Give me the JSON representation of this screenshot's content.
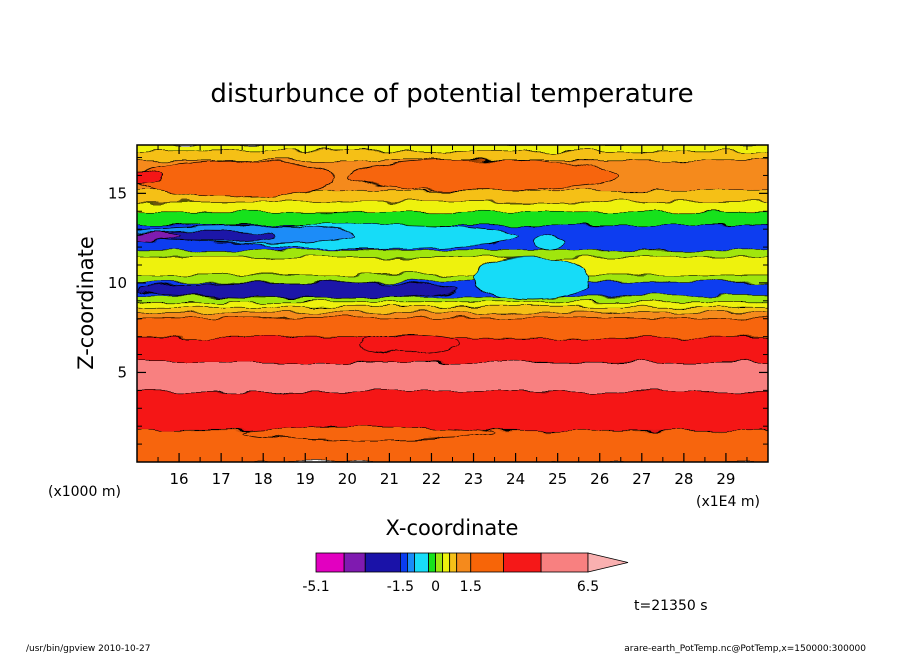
{
  "chart_data": {
    "type": "heatmap",
    "title": "disturbunce of potential temperature",
    "xlabel": "X-coordinate",
    "ylabel": "Z-coordinate",
    "x_unit_label": "(x1E4 m)",
    "y_unit_label": "(x1000 m)",
    "xlim": [
      15.0,
      30.0
    ],
    "ylim": [
      0.0,
      17.7
    ],
    "x_ticks": [
      "16",
      "17",
      "18",
      "19",
      "20",
      "21",
      "22",
      "23",
      "24",
      "25",
      "26",
      "27",
      "28",
      "29"
    ],
    "x_tick_values": [
      16,
      17,
      18,
      19,
      20,
      21,
      22,
      23,
      24,
      25,
      26,
      27,
      28,
      29
    ],
    "y_ticks": [
      "5",
      "10",
      "15"
    ],
    "y_tick_values": [
      5,
      10,
      15
    ],
    "time_label": "t=21350 s",
    "colorbar": {
      "colors": [
        "#e200c0",
        "#7f1ab0",
        "#1a12a8",
        "#0a3cf0",
        "#1a8cf8",
        "#18dcf8",
        "#16e21c",
        "#a0e610",
        "#eef20e",
        "#f5c018",
        "#f58a1c",
        "#f76508",
        "#f51818",
        "#f88080",
        "#f9b0b0"
      ],
      "levels_left": [
        -5.1,
        -3.9,
        -3.0,
        -1.5,
        -1.2,
        -0.9,
        -0.3,
        0.0,
        0.3,
        0.6,
        0.9,
        1.5,
        2.9,
        4.5,
        6.5
      ],
      "labels": [
        {
          "text": "-5.1",
          "value": -5.1
        },
        {
          "text": "-1.5",
          "value": -1.5
        },
        {
          "text": "0",
          "value": 0
        },
        {
          "text": "1.5",
          "value": 1.5
        },
        {
          "text": "6.5",
          "value": 6.5
        }
      ]
    },
    "bands": [
      {
        "z": 0.0,
        "color": "#f76508"
      },
      {
        "z": 1.8,
        "color": "#f51818"
      },
      {
        "z": 4.0,
        "color": "#f88080"
      },
      {
        "z": 5.6,
        "color": "#f51818"
      },
      {
        "z": 7.0,
        "color": "#f76508"
      },
      {
        "z": 8.1,
        "color": "#f58a1c"
      },
      {
        "z": 8.4,
        "color": "#f5c018"
      },
      {
        "z": 8.7,
        "color": "#eef20e"
      },
      {
        "z": 9.0,
        "color": "#a0e610"
      },
      {
        "z": 9.3,
        "color": "#0a3cf0"
      },
      {
        "z": 10.1,
        "color": "#a0e610"
      },
      {
        "z": 10.5,
        "color": "#eef20e"
      },
      {
        "z": 11.5,
        "color": "#a0e610"
      },
      {
        "z": 11.9,
        "color": "#0a3cf0"
      },
      {
        "z": 13.3,
        "color": "#16e21c"
      },
      {
        "z": 14.0,
        "color": "#eef20e"
      },
      {
        "z": 14.6,
        "color": "#f5c018"
      },
      {
        "z": 15.2,
        "color": "#f58a1c"
      },
      {
        "z": 16.9,
        "color": "#f5c018"
      },
      {
        "z": 17.4,
        "color": "#eef20e"
      }
    ],
    "blobs": [
      {
        "x": 24.4,
        "z": 10.3,
        "rx": 1.4,
        "rz": 1.2,
        "color": "#18dcf8"
      },
      {
        "x": 24.8,
        "z": 12.2,
        "rx": 0.35,
        "rz": 0.35,
        "color": "#18dcf8"
      },
      {
        "x": 20.5,
        "z": 12.6,
        "rx": 3.6,
        "rz": 0.7,
        "color": "#18dcf8"
      },
      {
        "x": 17.5,
        "z": 12.7,
        "rx": 2.7,
        "rz": 0.5,
        "color": "#1a8cf8"
      },
      {
        "x": 16.6,
        "z": 12.6,
        "rx": 1.7,
        "rz": 0.32,
        "color": "#1a12a8"
      },
      {
        "x": 15.4,
        "z": 12.6,
        "rx": 0.6,
        "rz": 0.25,
        "color": "#7f1ab0"
      },
      {
        "x": 17.3,
        "z": 15.8,
        "rx": 2.4,
        "rz": 1.0,
        "color": "#f76508"
      },
      {
        "x": 23.2,
        "z": 16.0,
        "rx": 3.2,
        "rz": 0.85,
        "color": "#f76508"
      },
      {
        "x": 15.1,
        "z": 15.9,
        "rx": 0.5,
        "rz": 0.35,
        "color": "#f51818"
      },
      {
        "x": 18.8,
        "z": 9.6,
        "rx": 3.8,
        "rz": 0.45,
        "color": "#1a12a8"
      },
      {
        "x": 21.5,
        "z": 6.6,
        "rx": 1.2,
        "rz": 0.5,
        "color": "#f51818"
      },
      {
        "x": 20.5,
        "z": 1.6,
        "rx": 3.0,
        "rz": 0.35,
        "color": "#f76508"
      }
    ]
  },
  "footer": {
    "left": "/usr/bin/gpview   2010-10-27",
    "right": "arare-earth_PotTemp.nc@PotTemp,x=150000:300000"
  }
}
